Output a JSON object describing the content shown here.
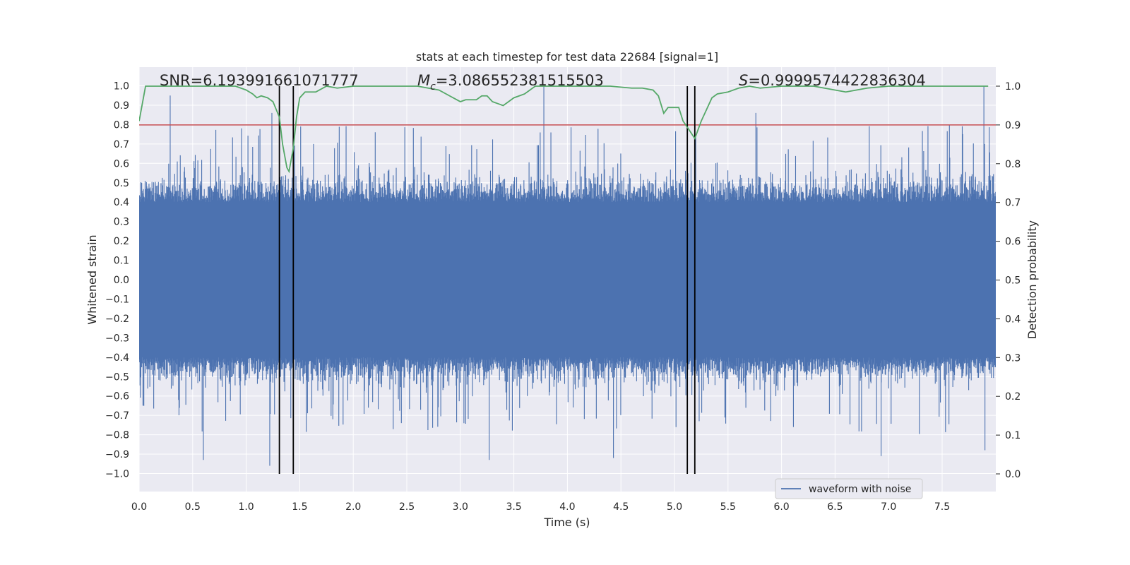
{
  "chart_data": {
    "type": "line",
    "title": "stats at each timestep for test data 22684 [signal=1]",
    "xlabel": "Time (s)",
    "ylabel": "Whitened strain",
    "y2label": "Detection probability",
    "xlim": [
      0.0,
      8.0
    ],
    "ylim": [
      -1.05,
      1.1
    ],
    "y2lim": [
      -0.05,
      1.05
    ],
    "x_ticks": [
      "0.0",
      "0.5",
      "1.0",
      "1.5",
      "2.0",
      "2.5",
      "3.0",
      "3.5",
      "4.0",
      "4.5",
      "5.0",
      "5.5",
      "6.0",
      "6.5",
      "7.0",
      "7.5"
    ],
    "y_ticks": [
      "1.0",
      "0.9",
      "0.8",
      "0.7",
      "0.6",
      "0.5",
      "0.4",
      "0.3",
      "0.2",
      "0.1",
      "0.0",
      "-0.1",
      "-0.2",
      "-0.3",
      "-0.4",
      "-0.5",
      "-0.6",
      "-0.7",
      "-0.8",
      "-0.9",
      "-1.0"
    ],
    "y2_ticks": [
      "1.0",
      "0.9",
      "0.8",
      "0.7",
      "0.6",
      "0.5",
      "0.4",
      "0.3",
      "0.2",
      "0.1",
      "0.0"
    ],
    "grid": true,
    "legend_position": "lower-right",
    "annotations": {
      "snr": "SNR=6.193991661071777",
      "mc_symbol": "M",
      "mc_sub": "c",
      "mc_value": "=3.086552381515503",
      "s_symbol": "S",
      "s_value": "=0.9999574422836304"
    },
    "threshold": {
      "y2": 0.9,
      "color": "#c44e52"
    },
    "vertical_lines_x": [
      1.31,
      1.44,
      5.12,
      5.19
    ],
    "series": [
      {
        "name": "waveform with noise",
        "axis": "left",
        "color": "#4c72b0",
        "style": "noise",
        "seed": 22684,
        "n_samples": 2000,
        "core_amplitude": 0.4,
        "spikes": [
          {
            "x": 0.29,
            "y": 0.95
          },
          {
            "x": 0.6,
            "y": -0.93
          },
          {
            "x": 1.22,
            "y": -0.96
          },
          {
            "x": 1.24,
            "y": 0.86
          },
          {
            "x": 3.27,
            "y": -0.93
          },
          {
            "x": 3.78,
            "y": 1.0
          },
          {
            "x": 4.43,
            "y": -0.92
          },
          {
            "x": 5.76,
            "y": 0.86
          },
          {
            "x": 6.93,
            "y": -0.91
          },
          {
            "x": 7.89,
            "y": 1.0
          },
          {
            "x": 7.9,
            "y": -0.88
          }
        ]
      },
      {
        "name": "detection probability",
        "axis": "right",
        "color": "#55a868",
        "x": [
          0.0,
          0.06,
          0.1,
          0.2,
          0.4,
          0.6,
          0.8,
          0.9,
          1.0,
          1.06,
          1.1,
          1.14,
          1.2,
          1.25,
          1.31,
          1.34,
          1.38,
          1.4,
          1.44,
          1.47,
          1.5,
          1.55,
          1.65,
          1.75,
          1.85,
          2.0,
          2.2,
          2.4,
          2.6,
          2.8,
          2.9,
          3.0,
          3.05,
          3.1,
          3.15,
          3.2,
          3.25,
          3.3,
          3.35,
          3.4,
          3.45,
          3.5,
          3.55,
          3.6,
          3.65,
          3.7,
          3.8,
          4.0,
          4.2,
          4.4,
          4.6,
          4.65,
          4.7,
          4.8,
          4.85,
          4.9,
          4.94,
          4.99,
          5.04,
          5.08,
          5.13,
          5.19,
          5.25,
          5.3,
          5.35,
          5.4,
          5.5,
          5.6,
          5.7,
          5.8,
          6.0,
          6.3,
          6.5,
          6.6,
          6.8,
          7.0,
          7.5,
          7.93
        ],
        "y": [
          0.91,
          1.0,
          1.0,
          1.0,
          1.0,
          1.0,
          1.0,
          1.0,
          0.99,
          0.98,
          0.97,
          0.975,
          0.97,
          0.96,
          0.92,
          0.85,
          0.79,
          0.78,
          0.84,
          0.92,
          0.97,
          0.985,
          0.985,
          1.0,
          0.995,
          1.0,
          1.0,
          1.0,
          1.0,
          0.99,
          0.975,
          0.96,
          0.965,
          0.965,
          0.965,
          0.975,
          0.975,
          0.96,
          0.955,
          0.95,
          0.96,
          0.97,
          0.975,
          0.98,
          0.99,
          1.0,
          1.0,
          1.0,
          1.0,
          1.0,
          0.995,
          0.995,
          0.995,
          0.99,
          0.975,
          0.93,
          0.945,
          0.945,
          0.945,
          0.91,
          0.89,
          0.865,
          0.91,
          0.94,
          0.97,
          0.98,
          0.985,
          0.995,
          1.0,
          0.995,
          1.0,
          1.0,
          0.99,
          0.985,
          0.995,
          1.0,
          1.0,
          1.0
        ]
      }
    ]
  }
}
